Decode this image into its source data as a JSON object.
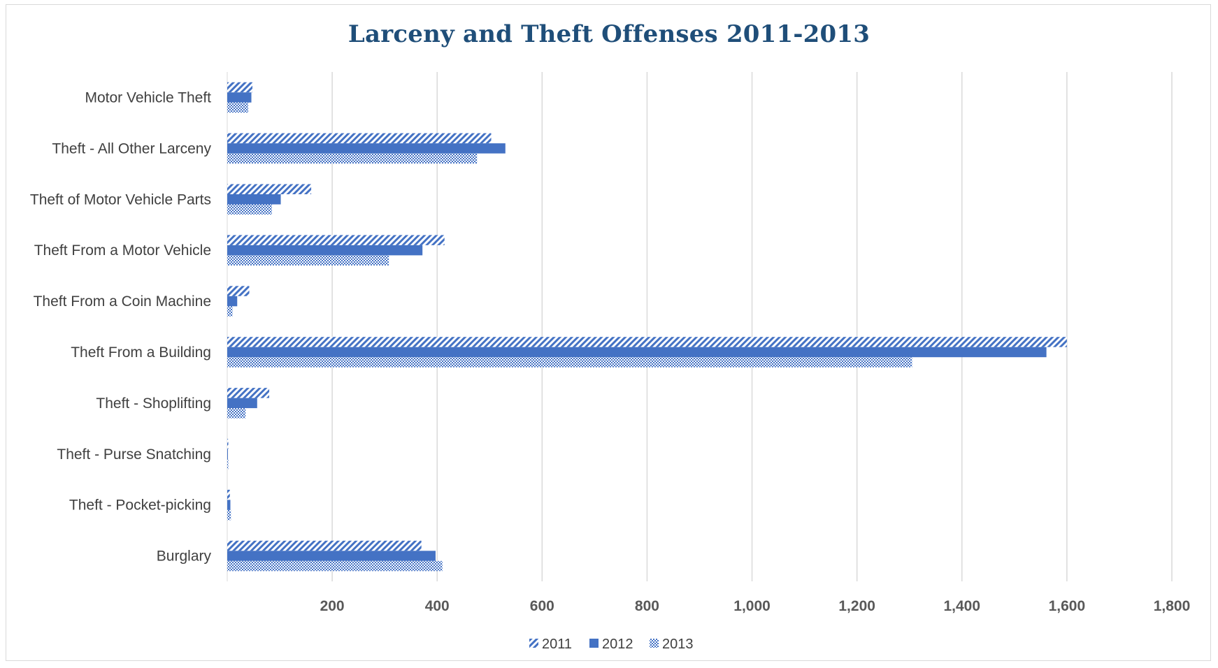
{
  "chart_data": {
    "type": "bar",
    "orientation": "horizontal",
    "title": "Larceny and Theft Offenses 2011-2013",
    "xlabel": "",
    "ylabel": "",
    "xlim": [
      0,
      1800
    ],
    "tick_values": [
      200,
      400,
      600,
      800,
      1000,
      1200,
      1400,
      1600,
      1800
    ],
    "tick_labels": [
      "200",
      "400",
      "600",
      "800",
      "1,000",
      "1,200",
      "1,400",
      "1,600",
      "1,800"
    ],
    "grid": "vertical",
    "legend_position": "bottom",
    "categories": [
      "Motor Vehicle Theft",
      "Theft - All Other Larceny",
      "Theft of Motor Vehicle Parts",
      "Theft From a Motor Vehicle",
      "Theft From a Coin Machine",
      "Theft From a Building",
      "Theft - Shoplifting",
      "Theft - Purse Snatching",
      "Theft - Pocket-picking",
      "Burglary"
    ],
    "series": [
      {
        "name": "2011",
        "pattern": "diagonal-stripes",
        "color": "#4472c4",
        "values": [
          48,
          503,
          160,
          414,
          42,
          1600,
          80,
          2,
          5,
          370
        ]
      },
      {
        "name": "2012",
        "pattern": "solid",
        "color": "#4472c4",
        "values": [
          46,
          530,
          102,
          372,
          19,
          1561,
          57,
          1,
          6,
          397
        ]
      },
      {
        "name": "2013",
        "pattern": "checker",
        "color": "#4472c4",
        "values": [
          40,
          476,
          85,
          308,
          10,
          1305,
          35,
          2,
          7,
          410
        ]
      }
    ]
  }
}
